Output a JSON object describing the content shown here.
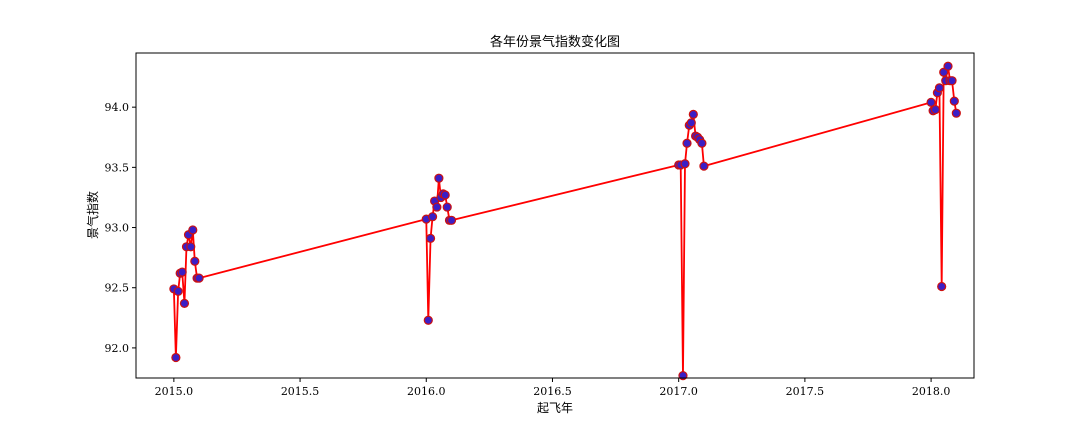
{
  "chart_data": {
    "type": "line",
    "title": "各年份景气指数变化图",
    "xlabel": "起飞年",
    "ylabel": "景气指数",
    "xlim": [
      2014.85,
      2018.17
    ],
    "ylim": [
      91.75,
      94.45
    ],
    "xticks": [
      2015.0,
      2015.5,
      2016.0,
      2016.5,
      2017.0,
      2017.5,
      2018.0
    ],
    "xtick_labels": [
      "2015.0",
      "2015.5",
      "2016.0",
      "2016.5",
      "2017.0",
      "2017.5",
      "2018.0"
    ],
    "yticks": [
      92.0,
      92.5,
      93.0,
      93.5,
      94.0
    ],
    "ytick_labels": [
      "92.0",
      "92.5",
      "93.0",
      "93.5",
      "94.0"
    ],
    "grid": false,
    "colors": {
      "line": "#ff0000",
      "marker_fill": "#3b1fc6",
      "marker_edge": "#cc1111"
    },
    "series": [
      {
        "x": [
          2015.0,
          2015.008,
          2015.017,
          2015.025,
          2015.033,
          2015.042,
          2015.05,
          2015.058,
          2015.067,
          2015.075,
          2015.083,
          2015.092,
          2015.1,
          2016.0,
          2016.008,
          2016.017,
          2016.025,
          2016.033,
          2016.042,
          2016.05,
          2016.058,
          2016.067,
          2016.075,
          2016.083,
          2016.092,
          2016.1,
          2017.0,
          2017.008,
          2017.017,
          2017.025,
          2017.033,
          2017.042,
          2017.05,
          2017.058,
          2017.067,
          2017.075,
          2017.083,
          2017.092,
          2017.1,
          2018.0,
          2018.008,
          2018.017,
          2018.025,
          2018.033,
          2018.042,
          2018.05,
          2018.058,
          2018.067,
          2018.075,
          2018.083,
          2018.092,
          2018.1
        ],
        "y": [
          92.49,
          91.92,
          92.47,
          92.62,
          92.63,
          92.37,
          92.84,
          92.94,
          92.84,
          92.98,
          92.72,
          92.58,
          92.58,
          93.07,
          92.23,
          92.91,
          93.09,
          93.22,
          93.17,
          93.41,
          93.25,
          93.28,
          93.27,
          93.17,
          93.06,
          93.06,
          93.52,
          93.52,
          91.77,
          93.53,
          93.7,
          93.85,
          93.87,
          93.94,
          93.76,
          93.75,
          93.73,
          93.7,
          93.51,
          94.04,
          93.97,
          93.98,
          94.12,
          94.16,
          92.51,
          94.29,
          94.22,
          94.34,
          94.22,
          94.22,
          94.05,
          93.95
        ]
      }
    ]
  }
}
